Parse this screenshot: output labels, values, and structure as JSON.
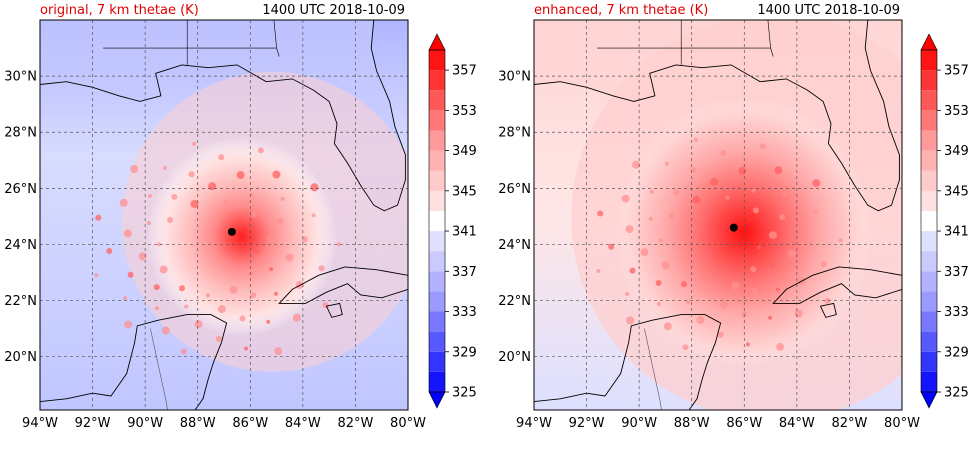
{
  "panels": [
    {
      "title_left": "original, 7 km thetae (K)",
      "title_right": "1400 UTC 2018-10-09",
      "center_lon": -86.7,
      "center_lat": 24.45,
      "intensity": 1.0
    },
    {
      "title_left": "enhanced, 7 km thetae (K)",
      "title_right": "1400 UTC 2018-10-09",
      "center_lon": -86.4,
      "center_lat": 24.6,
      "intensity": 1.35
    }
  ],
  "map": {
    "lon_range": [
      -94,
      -80
    ],
    "lat_range": [
      18.1,
      32
    ],
    "lon_ticks": [
      "94°W",
      "92°W",
      "90°W",
      "88°W",
      "86°W",
      "84°W",
      "82°W",
      "80°W"
    ],
    "lon_tick_values": [
      -94,
      -92,
      -90,
      -88,
      -86,
      -84,
      -82,
      -80
    ],
    "lat_ticks": [
      "20°N",
      "22°N",
      "24°N",
      "26°N",
      "28°N",
      "30°N"
    ],
    "lat_tick_values": [
      20,
      22,
      24,
      26,
      28,
      30
    ],
    "grid": "dashed"
  },
  "colorbar": {
    "levels": [
      325,
      327,
      329,
      331,
      333,
      335,
      337,
      339,
      341,
      343,
      345,
      347,
      349,
      351,
      353,
      355,
      357,
      359
    ],
    "labels": [
      "325",
      "329",
      "333",
      "337",
      "341",
      "345",
      "349",
      "353",
      "357"
    ],
    "label_values": [
      325,
      329,
      333,
      337,
      341,
      345,
      349,
      353,
      357
    ],
    "colors": [
      "#1414ff",
      "#3434ff",
      "#5858ff",
      "#7878ff",
      "#9a9aff",
      "#b2b2ff",
      "#cacaff",
      "#e0e0ff",
      "#ffffff",
      "#ffe0e0",
      "#ffcaca",
      "#ffb2b2",
      "#ff9a9a",
      "#ff7878",
      "#ff5858",
      "#ff3434",
      "#ff1414"
    ],
    "extend": "both"
  }
}
